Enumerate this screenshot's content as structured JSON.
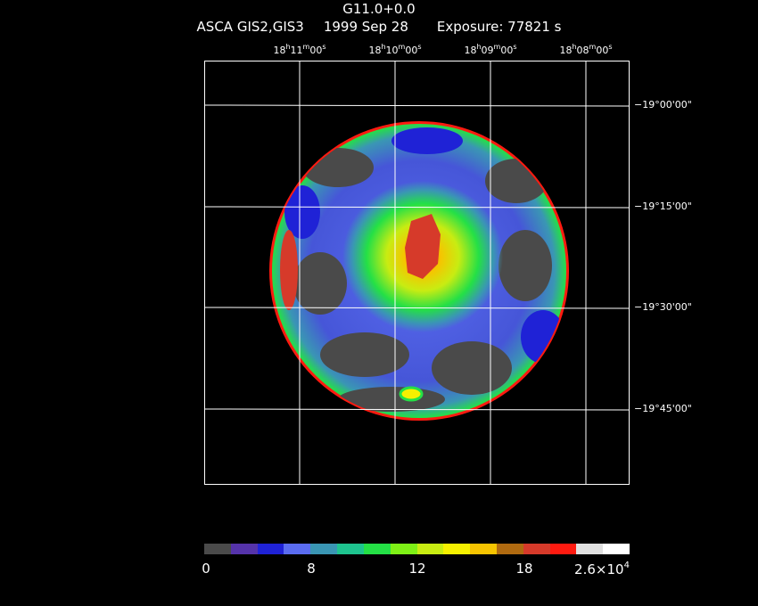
{
  "header": {
    "title": "G11.0+0.0",
    "instrument": "ASCA GIS2,GIS3",
    "date": "1999 Sep 28",
    "exposure": "Exposure: 77821 s"
  },
  "ra_labels": [
    {
      "h": "18",
      "m": "11",
      "s": "00"
    },
    {
      "h": "18",
      "m": "10",
      "s": "00"
    },
    {
      "h": "18",
      "m": "09",
      "s": "00"
    },
    {
      "h": "18",
      "m": "08",
      "s": "00"
    }
  ],
  "dec_labels": [
    "−19°00'00\"",
    "−19°15'00\"",
    "−19°30'00\"",
    "−19°45'00\""
  ],
  "colorbar": {
    "colors": [
      "#4a4a4a",
      "#5533aa",
      "#1f22d6",
      "#5a6cf0",
      "#3a96b4",
      "#1ec48f",
      "#24e046",
      "#7ef016",
      "#c8ec12",
      "#f6f000",
      "#f6c400",
      "#b06a10",
      "#d63a2a",
      "#ff1a10",
      "#e0e0e0",
      "#ffffff"
    ],
    "labels": [
      {
        "main": "0",
        "sup": ""
      },
      {
        "main": "8",
        "sup": ""
      },
      {
        "main": "12",
        "sup": ""
      },
      {
        "main": "18",
        "sup": ""
      },
      {
        "main": "2.6×10",
        "sup": "4"
      }
    ]
  }
}
